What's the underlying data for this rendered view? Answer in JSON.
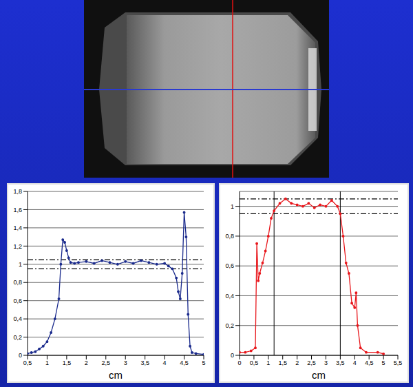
{
  "chart_data": [
    {
      "type": "line",
      "x_label": "cm",
      "grid": true,
      "xlim": [
        0.5,
        5
      ],
      "ylim": [
        0,
        1.8
      ],
      "xticks": [
        {
          "value": 0.5,
          "label": "0,5"
        },
        1,
        {
          "value": 1.5,
          "label": "1,5"
        },
        2,
        {
          "value": 2.5,
          "label": "2,5"
        },
        3,
        {
          "value": 3.5,
          "label": "3,5"
        },
        4,
        {
          "value": 4.5,
          "label": "4,5"
        },
        5
      ],
      "yticks": [
        0,
        {
          "value": 0.2,
          "label": "0,2"
        },
        {
          "value": 0.4,
          "label": "0,4"
        },
        {
          "value": 0.6,
          "label": "0,6"
        },
        {
          "value": 0.8,
          "label": "0,8"
        },
        1,
        {
          "value": 1.2,
          "label": "1,2"
        },
        {
          "value": 1.4,
          "label": "1,4"
        },
        {
          "value": 1.6,
          "label": "1,6"
        },
        {
          "value": 1.8,
          "label": "1,8"
        }
      ],
      "reference_lines": [
        0.95,
        1.05
      ],
      "series": [
        {
          "color": "#1a2a8c",
          "marker": "dot",
          "line_style": "solid",
          "x": [
            0.5,
            0.6,
            0.7,
            0.8,
            0.9,
            1.0,
            1.1,
            1.2,
            1.3,
            1.35,
            1.4,
            1.45,
            1.5,
            1.55,
            1.6,
            1.7,
            1.8,
            2.0,
            2.2,
            2.4,
            2.6,
            2.8,
            3.0,
            3.2,
            3.4,
            3.6,
            3.8,
            4.0,
            4.1,
            4.2,
            4.3,
            4.35,
            4.4,
            4.45,
            4.5,
            4.55,
            4.6,
            4.65,
            4.7,
            4.8,
            5.0
          ],
          "values": [
            0.02,
            0.03,
            0.04,
            0.07,
            0.1,
            0.15,
            0.25,
            0.4,
            0.62,
            1.0,
            1.27,
            1.24,
            1.15,
            1.07,
            1.02,
            1.01,
            1.02,
            1.03,
            1.01,
            1.04,
            1.02,
            1.0,
            1.03,
            1.01,
            1.04,
            1.02,
            1.0,
            1.01,
            0.98,
            0.95,
            0.85,
            0.7,
            0.62,
            0.9,
            1.57,
            1.3,
            0.45,
            0.1,
            0.03,
            0.02,
            0.01
          ]
        }
      ]
    },
    {
      "type": "line",
      "x_label": "cm",
      "grid": true,
      "xlim": [
        0,
        5.5
      ],
      "ylim": [
        0,
        1.1
      ],
      "xticks": [
        0,
        {
          "value": 0.5,
          "label": "0,5"
        },
        1,
        {
          "value": 1.5,
          "label": "1,5"
        },
        2,
        {
          "value": 2.5,
          "label": "2,5"
        },
        3,
        {
          "value": 3.5,
          "label": "3,5"
        },
        4,
        {
          "value": 4.5,
          "label": "4,5"
        },
        5,
        {
          "value": 5.5,
          "label": "5,5"
        }
      ],
      "yticks": [
        0,
        {
          "value": 0.2,
          "label": "0,2"
        },
        {
          "value": 0.4,
          "label": "0,4"
        },
        {
          "value": 0.6,
          "label": "0,6"
        },
        {
          "value": 0.8,
          "label": "0,8"
        },
        1
      ],
      "reference_lines": [
        0.95,
        1.05
      ],
      "vertical_lines": [
        1.2,
        3.5
      ],
      "series": [
        {
          "color": "#e8161b",
          "marker": "dot",
          "line_style": "solid",
          "x": [
            0,
            0.2,
            0.4,
            0.55,
            0.6,
            0.65,
            0.7,
            0.8,
            0.9,
            1.0,
            1.1,
            1.2,
            1.4,
            1.6,
            1.8,
            2.0,
            2.2,
            2.4,
            2.6,
            2.8,
            3.0,
            3.2,
            3.4,
            3.5,
            3.6,
            3.7,
            3.8,
            3.9,
            4.0,
            4.05,
            4.1,
            4.2,
            4.4,
            4.8,
            5.0
          ],
          "values": [
            0.02,
            0.02,
            0.03,
            0.05,
            0.75,
            0.5,
            0.55,
            0.62,
            0.7,
            0.8,
            0.92,
            0.97,
            1.02,
            1.05,
            1.02,
            1.01,
            1.0,
            1.02,
            0.99,
            1.01,
            1.0,
            1.04,
            1.0,
            0.95,
            0.8,
            0.62,
            0.55,
            0.35,
            0.32,
            0.42,
            0.2,
            0.05,
            0.02,
            0.02,
            0.01
          ]
        }
      ]
    }
  ]
}
